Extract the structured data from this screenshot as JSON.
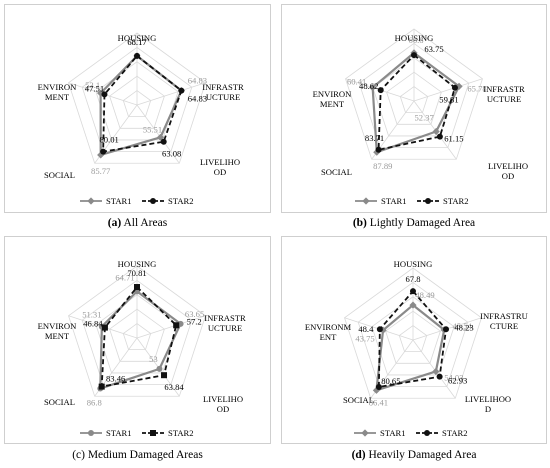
{
  "chart_data": [
    {
      "type": "radar",
      "axes": [
        "HOUSING",
        "INFRASTR\nUCTURE",
        "LIVELIHO\nOD",
        "SOCIAL",
        "ENVIRON\nMENT"
      ],
      "rmax": 100,
      "series": [
        {
          "name": "STAR1",
          "values": [
            68.17,
            64.83,
            55.51,
            85.77,
            53.1
          ],
          "color": "#8a8a8a",
          "marker": "diamond",
          "dash": "solid"
        },
        {
          "name": "STAR2",
          "values": [
            68.17,
            64.83,
            63.08,
            80.01,
            47.51
          ],
          "color": "#111111",
          "marker": "circle",
          "dash": "dashed"
        }
      ],
      "caption_bold": "(a)",
      "caption_text": " All Areas"
    },
    {
      "type": "radar",
      "axes": [
        "HOUSING",
        "INFRASTR\nUCTURE",
        "LIVELIHO\nOD",
        "SOCIAL",
        "ENVIRON\nMENT"
      ],
      "rmax": 100,
      "series": [
        {
          "name": "STAR1",
          "values": [
            66.8,
            65.78,
            52.37,
            87.89,
            60.41
          ],
          "color": "#8a8a8a",
          "marker": "diamond",
          "dash": "solid"
        },
        {
          "name": "STAR2",
          "values": [
            63.75,
            59.81,
            61.15,
            83.71,
            48.62
          ],
          "color": "#111111",
          "marker": "circle",
          "dash": "dashed"
        }
      ],
      "caption_bold": "(b)",
      "caption_text": " Lightly Damaged Area"
    },
    {
      "type": "radar",
      "axes": [
        "HOUSING",
        "INFRASTR\nUCTURE",
        "LIVELIHO\nOD",
        "SOCIAL",
        "ENVIRON\nMENT"
      ],
      "rmax": 100,
      "series": [
        {
          "name": "STAR1",
          "values": [
            64.71,
            63.65,
            53,
            86.8,
            51.31
          ],
          "color": "#8a8a8a",
          "marker": "circle",
          "dash": "solid"
        },
        {
          "name": "STAR2",
          "values": [
            70.81,
            57.2,
            63.84,
            83.46,
            46.84
          ],
          "color": "#111111",
          "marker": "square",
          "dash": "dashed"
        }
      ],
      "caption_bold": "",
      "caption_text": "(c) Medium Damaged Areas"
    },
    {
      "type": "radar",
      "axes": [
        "HOUSING",
        "INFRASTRU\nCTURE",
        "LIVELIHOO\nD",
        "SOCIAL",
        "ENVIRONM\nENT"
      ],
      "rmax": 100,
      "series": [
        {
          "name": "STAR1",
          "values": [
            48.49,
            45.54,
            54.03,
            86.41,
            43.75
          ],
          "color": "#8a8a8a",
          "marker": "diamond",
          "dash": "solid"
        },
        {
          "name": "STAR2",
          "values": [
            67.8,
            48.23,
            62.93,
            80.65,
            48.4
          ],
          "color": "#111111",
          "marker": "circle",
          "dash": "dashed"
        }
      ],
      "caption_bold": "(d)",
      "caption_text": " Heavily Damaged Area"
    }
  ]
}
